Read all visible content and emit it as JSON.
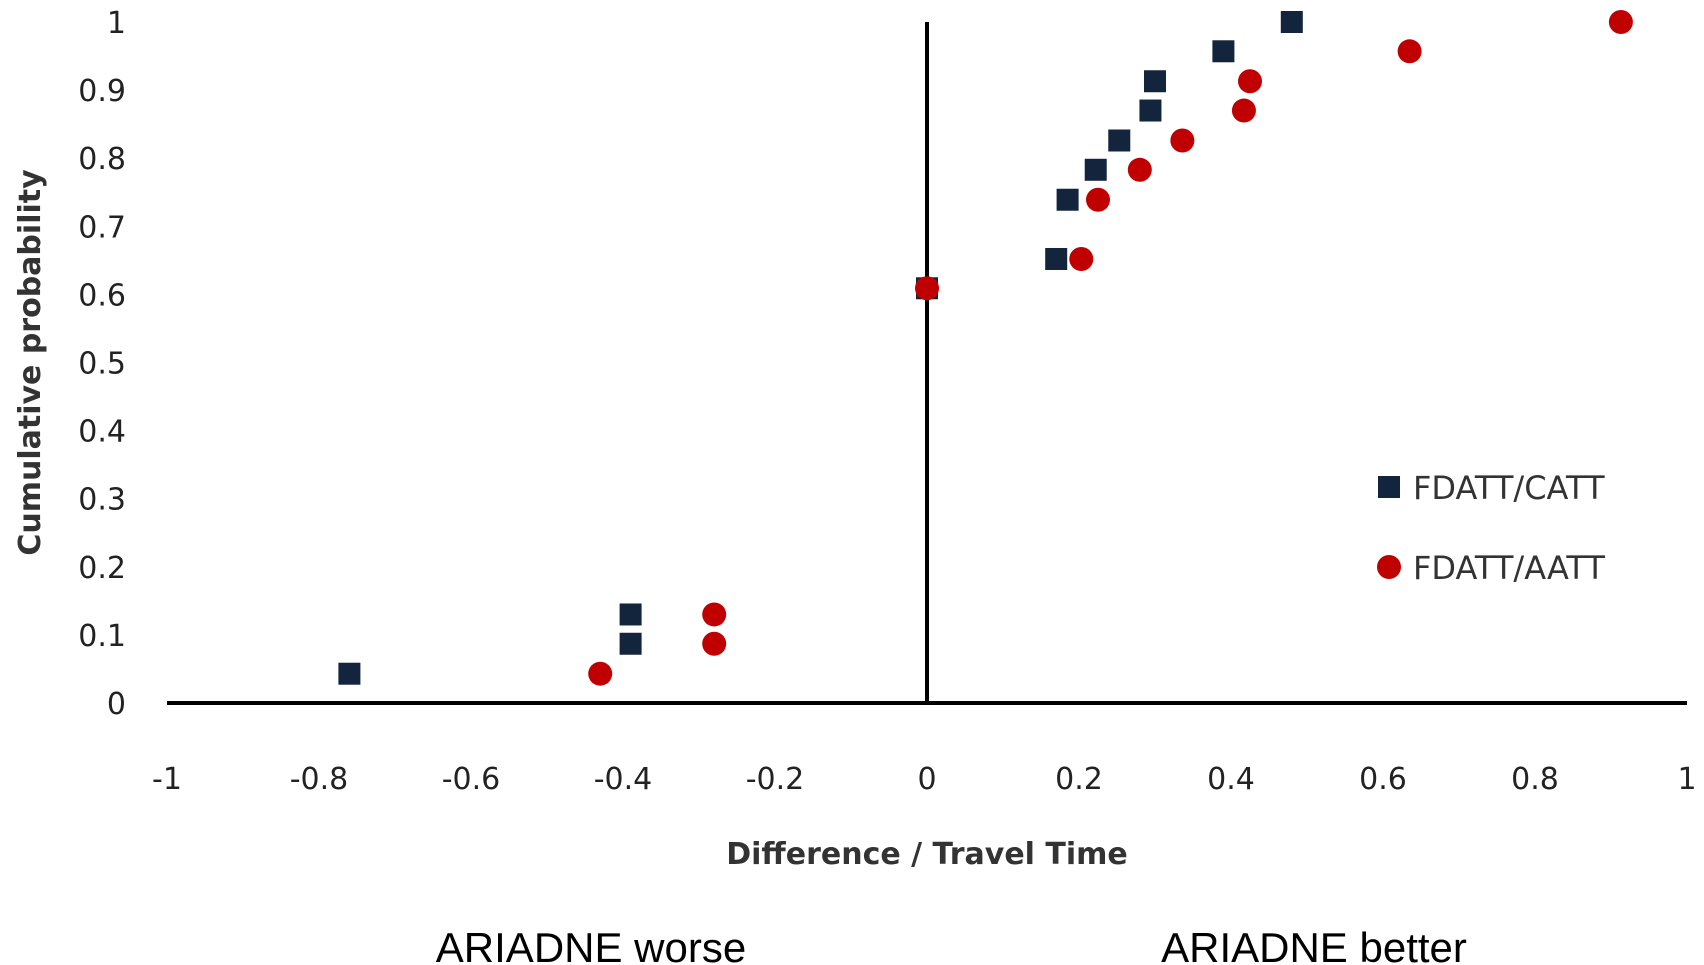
{
  "chart_data": {
    "type": "scatter",
    "xlabel": "Difference / Travel Time",
    "ylabel": "Cumulative probability",
    "xlim": [
      -1,
      1
    ],
    "ylim": [
      0,
      1
    ],
    "x_ticks": [
      "-1",
      "-0.8",
      "-0.6",
      "-0.4",
      "-0.2",
      "0",
      "0.2",
      "0.4",
      "0.6",
      "0.8",
      "1"
    ],
    "y_ticks": [
      "0",
      "0.1",
      "0.2",
      "0.3",
      "0.4",
      "0.5",
      "0.6",
      "0.7",
      "0.8",
      "0.9",
      "1"
    ],
    "legend_position": "right",
    "grid": false,
    "series": [
      {
        "name": "FDATT/CATT",
        "marker": "square",
        "color": "#13243d",
        "points": [
          [
            -0.76,
            0.043
          ],
          [
            -0.39,
            0.087
          ],
          [
            -0.39,
            0.13
          ],
          [
            0.0,
            0.609
          ],
          [
            0.17,
            0.652
          ],
          [
            0.185,
            0.739
          ],
          [
            0.222,
            0.783
          ],
          [
            0.253,
            0.826
          ],
          [
            0.294,
            0.87
          ],
          [
            0.3,
            0.913
          ],
          [
            0.39,
            0.957
          ],
          [
            0.48,
            1.0
          ]
        ]
      },
      {
        "name": "FDATT/AATT",
        "marker": "circle",
        "color": "#c00000",
        "points": [
          [
            -0.43,
            0.043
          ],
          [
            -0.28,
            0.087
          ],
          [
            -0.28,
            0.13
          ],
          [
            0.0,
            0.609
          ],
          [
            0.203,
            0.652
          ],
          [
            0.225,
            0.739
          ],
          [
            0.28,
            0.783
          ],
          [
            0.336,
            0.826
          ],
          [
            0.417,
            0.87
          ],
          [
            0.425,
            0.913
          ],
          [
            0.635,
            0.957
          ],
          [
            0.913,
            1.0
          ]
        ]
      }
    ]
  },
  "annotations": {
    "left": "ARIADNE worse",
    "right": "ARIADNE better"
  }
}
